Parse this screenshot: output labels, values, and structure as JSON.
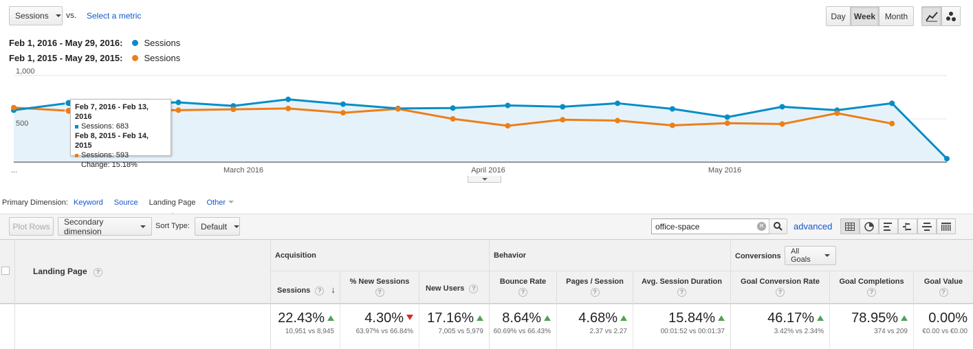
{
  "metric_selector": {
    "value": "Sessions",
    "vs_label": "vs.",
    "select_metric": "Select a metric"
  },
  "granularity": {
    "day": "Day",
    "week": "Week",
    "month": "Month",
    "active": "Week"
  },
  "chart_modes": [
    "line-chart-icon",
    "motion-chart-icon"
  ],
  "legend": [
    {
      "range": "Feb 1, 2016 - May 29, 2016:",
      "metric": "Sessions",
      "color": "#058dc7"
    },
    {
      "range": "Feb 1, 2015 - May 29, 2015:",
      "metric": "Sessions",
      "color": "#ed7e17"
    }
  ],
  "tooltip": {
    "line1": "Feb 7, 2016 - Feb 13, 2016",
    "line2": "Sessions: 683",
    "line3": "Feb 8, 2015 - Feb 14, 2015",
    "line4": "Sessions: 593",
    "line5": "Change: 15.18%"
  },
  "chart_data": {
    "type": "line",
    "ylabels": [
      "1,000",
      "500"
    ],
    "xlabels": [
      "...",
      "March 2016",
      "April 2016",
      "May 2016"
    ],
    "ylim": [
      0,
      1000
    ],
    "series": [
      {
        "name": "Feb 1, 2016 - May 29, 2016: Sessions",
        "color": "#058dc7",
        "values": [
          600,
          683,
          680,
          690,
          650,
          725,
          670,
          620,
          625,
          655,
          640,
          680,
          615,
          520,
          640,
          600,
          680,
          40
        ]
      },
      {
        "name": "Feb 1, 2015 - May 29, 2015: Sessions",
        "color": "#ed7e17",
        "values": [
          630,
          593,
          600,
          600,
          610,
          620,
          570,
          615,
          500,
          420,
          490,
          480,
          425,
          450,
          440,
          565,
          445
        ]
      }
    ]
  },
  "dimension_bar": {
    "label": "Primary Dimension:",
    "keyword": "Keyword",
    "source": "Source",
    "landing": "Landing Page",
    "other": "Other"
  },
  "toolbar": {
    "plot_rows": "Plot Rows",
    "secondary": "Secondary dimension",
    "sort_label": "Sort Type:",
    "sort_value": "Default",
    "search_value": "office-space",
    "advanced": "advanced"
  },
  "table": {
    "landing_header": "Landing Page",
    "groups": {
      "acquisition": "Acquisition",
      "behavior": "Behavior",
      "conversions": "Conversions",
      "goals": "All Goals"
    },
    "columns": [
      {
        "label": "Sessions",
        "pct": "22.43%",
        "sub": "10,951 vs 8,945",
        "dir": "up"
      },
      {
        "label": "% New Sessions",
        "pct": "4.30%",
        "sub": "63.97% vs 66.84%",
        "dir": "down"
      },
      {
        "label": "New Users",
        "pct": "17.16%",
        "sub": "7,005 vs 5,979",
        "dir": "up"
      },
      {
        "label": "Bounce Rate",
        "pct": "8.64%",
        "sub": "60.69% vs 66.43%",
        "dir": "up"
      },
      {
        "label": "Pages / Session",
        "pct": "4.68%",
        "sub": "2.37 vs 2.27",
        "dir": "up"
      },
      {
        "label": "Avg. Session Duration",
        "pct": "15.84%",
        "sub": "00:01:52 vs 00:01:37",
        "dir": "up"
      },
      {
        "label": "Goal Conversion Rate",
        "pct": "46.17%",
        "sub": "3.42% vs 2.34%",
        "dir": "up"
      },
      {
        "label": "Goal Completions",
        "pct": "78.95%",
        "sub": "374 vs 209",
        "dir": "up"
      },
      {
        "label": "Goal Value",
        "pct": "0.00%",
        "sub": "€0.00 vs €0.00",
        "dir": "none"
      }
    ]
  }
}
